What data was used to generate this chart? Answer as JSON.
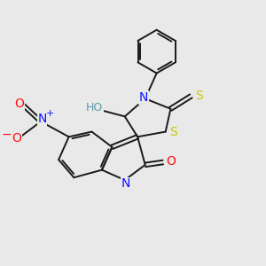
{
  "bg_color": "#e9e9e9",
  "bond_color": "#1a1a1a",
  "bond_width": 1.4,
  "atom_colors": {
    "N": "#1010ff",
    "O": "#ff1010",
    "S": "#c8c800",
    "C": "#1a1a1a"
  },
  "font_size": 10,
  "ho_color": "#5a9aaa"
}
